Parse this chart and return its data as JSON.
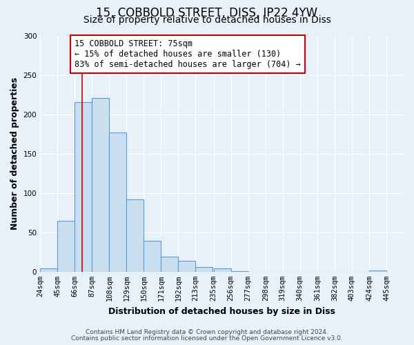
{
  "title": "15, COBBOLD STREET, DISS, IP22 4YW",
  "subtitle": "Size of property relative to detached houses in Diss",
  "xlabel": "Distribution of detached houses by size in Diss",
  "ylabel": "Number of detached properties",
  "bar_left_edges": [
    24,
    45,
    66,
    87,
    108,
    129,
    150,
    171,
    192,
    213,
    235,
    256,
    277,
    298,
    319,
    340,
    361,
    382,
    403,
    424
  ],
  "bar_heights": [
    4,
    65,
    215,
    221,
    177,
    92,
    39,
    19,
    14,
    6,
    4,
    1,
    0,
    0,
    0,
    0,
    0,
    0,
    0,
    2
  ],
  "bin_width": 21,
  "tick_labels": [
    "24sqm",
    "45sqm",
    "66sqm",
    "87sqm",
    "108sqm",
    "129sqm",
    "150sqm",
    "171sqm",
    "192sqm",
    "213sqm",
    "235sqm",
    "256sqm",
    "277sqm",
    "298sqm",
    "319sqm",
    "340sqm",
    "361sqm",
    "382sqm",
    "403sqm",
    "424sqm",
    "445sqm"
  ],
  "tick_positions": [
    24,
    45,
    66,
    87,
    108,
    129,
    150,
    171,
    192,
    213,
    235,
    256,
    277,
    298,
    319,
    340,
    361,
    382,
    403,
    424,
    445
  ],
  "bar_color": "#c9dff0",
  "bar_edge_color": "#5b9bd5",
  "property_line_x": 75,
  "property_line_color": "#cc0000",
  "ylim": [
    0,
    300
  ],
  "yticks": [
    0,
    50,
    100,
    150,
    200,
    250,
    300
  ],
  "annotation_box_title": "15 COBBOLD STREET: 75sqm",
  "annotation_line1": "← 15% of detached houses are smaller (130)",
  "annotation_line2": "83% of semi-detached houses are larger (704) →",
  "annotation_box_color": "#cc0000",
  "footer1": "Contains HM Land Registry data © Crown copyright and database right 2024.",
  "footer2": "Contains public sector information licensed under the Open Government Licence v3.0.",
  "background_color": "#e8f0f8",
  "grid_color": "#ffffff",
  "title_fontsize": 12,
  "subtitle_fontsize": 10,
  "axis_label_fontsize": 9,
  "tick_fontsize": 7.5,
  "annotation_fontsize": 8.5,
  "footer_fontsize": 6.5
}
